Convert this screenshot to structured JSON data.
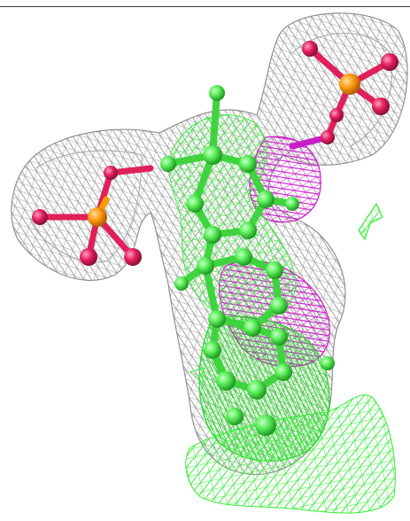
{
  "image": {
    "subject": "molecular-electron-density-figure",
    "colors": {
      "background": "#ffffff",
      "grey_mesh": "#9a9a9a",
      "green_mesh": "#33ee33",
      "magenta_mesh": "#cc22cc",
      "ligand_carbon": "#55ee55",
      "phosphate_p": "#ff9900",
      "phosphate_o": "#e0205a"
    },
    "layers": [
      "grey-density-mesh",
      "magenta-density-mesh",
      "green-density-mesh",
      "ligand-ball-and-stick",
      "phosphate-groups"
    ]
  }
}
